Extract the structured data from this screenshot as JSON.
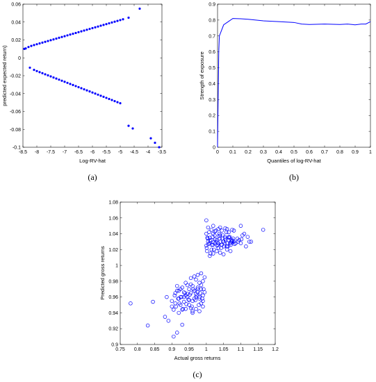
{
  "chart_data": [
    {
      "type": "scatter",
      "panel_label": "(a)",
      "title": "",
      "xlabel": "Log-RV-hat",
      "ylabel": "predicted expected return)",
      "xlim": [
        -8.5,
        -3.5
      ],
      "ylim": [
        -0.1,
        0.06
      ],
      "xticks": [
        "-8.5",
        "-8",
        "-7.5",
        "-7",
        "-6.5",
        "-6",
        "-5.5",
        "-5",
        "-4.5",
        "-4",
        "-3.5"
      ],
      "yticks": [
        "0.06",
        "0.04",
        "0.02",
        "0",
        "-0.02",
        "-0.04",
        "-0.06",
        "-0.08",
        "-0.1"
      ],
      "marker": "filled-dot",
      "color": "#0000ff",
      "series": [
        {
          "x": [
            -8.45,
            -8.4,
            -8.3,
            -8.2,
            -8.1,
            -8.0,
            -7.9,
            -7.8,
            -7.7,
            -7.6,
            -7.5,
            -7.4,
            -7.3,
            -7.2,
            -7.1,
            -7.0,
            -6.9,
            -6.8,
            -6.7,
            -6.6,
            -6.5,
            -6.4,
            -6.3,
            -6.2,
            -6.1,
            -6.0,
            -5.9,
            -5.8,
            -5.7,
            -5.6,
            -5.5,
            -5.4,
            -5.3,
            -5.2,
            -5.1,
            -5.0,
            -4.9,
            -4.7,
            -4.3
          ],
          "y": [
            0.01,
            0.0105,
            0.0121,
            0.0133,
            0.0143,
            0.0152,
            0.0161,
            0.017,
            0.0179,
            0.0188,
            0.0197,
            0.0206,
            0.0215,
            0.0224,
            0.0233,
            0.0242,
            0.0251,
            0.026,
            0.0269,
            0.0278,
            0.0287,
            0.0296,
            0.0305,
            0.0314,
            0.0323,
            0.0332,
            0.0341,
            0.035,
            0.0359,
            0.0368,
            0.0377,
            0.0386,
            0.0395,
            0.0404,
            0.0413,
            0.0422,
            0.0431,
            0.0449,
            0.055
          ]
        },
        {
          "x": [
            -8.25,
            -8.1,
            -8.0,
            -7.9,
            -7.8,
            -7.7,
            -7.6,
            -7.5,
            -7.4,
            -7.3,
            -7.2,
            -7.1,
            -7.0,
            -6.9,
            -6.8,
            -6.7,
            -6.6,
            -6.5,
            -6.4,
            -6.3,
            -6.2,
            -6.1,
            -6.0,
            -5.9,
            -5.8,
            -5.7,
            -5.6,
            -5.5,
            -5.4,
            -5.3,
            -5.2,
            -5.1,
            -5.0,
            -4.7,
            -4.55,
            -3.9,
            -3.75,
            -3.6
          ],
          "y": [
            -0.011,
            -0.0135,
            -0.0148,
            -0.016,
            -0.0172,
            -0.0184,
            -0.0196,
            -0.0208,
            -0.022,
            -0.0232,
            -0.0244,
            -0.0256,
            -0.0268,
            -0.028,
            -0.0292,
            -0.0304,
            -0.0316,
            -0.0328,
            -0.034,
            -0.0352,
            -0.0364,
            -0.0376,
            -0.0388,
            -0.04,
            -0.0412,
            -0.0424,
            -0.0436,
            -0.0448,
            -0.046,
            -0.0472,
            -0.0484,
            -0.0496,
            -0.0508,
            -0.076,
            -0.079,
            -0.09,
            -0.095,
            -0.1
          ]
        }
      ]
    },
    {
      "type": "line",
      "panel_label": "(b)",
      "title": "",
      "xlabel": "Quantiles of log-RV-hat",
      "ylabel": "Strength of exposure",
      "xlim": [
        0,
        1
      ],
      "ylim": [
        0,
        0.9
      ],
      "xticks": [
        "0",
        "0.1",
        "0.2",
        "0.3",
        "0.4",
        "0.5",
        "0.6",
        "0.7",
        "0.8",
        "0.9",
        "1"
      ],
      "yticks": [
        "0.9",
        "0.8",
        "0.7",
        "0.6",
        "0.5",
        "0.4",
        "0.3",
        "0.2",
        "0.1",
        "0"
      ],
      "color": "#0000ff",
      "series": [
        {
          "x": [
            0,
            0.004,
            0.008,
            0.012,
            0.02,
            0.04,
            0.07,
            0.1,
            0.15,
            0.2,
            0.3,
            0.4,
            0.5,
            0.55,
            0.6,
            0.7,
            0.8,
            0.85,
            0.9,
            0.94,
            0.97,
            1.0
          ],
          "y": [
            0.0,
            0.3,
            0.6,
            0.7,
            0.72,
            0.77,
            0.79,
            0.81,
            0.808,
            0.805,
            0.795,
            0.79,
            0.785,
            0.775,
            0.772,
            0.775,
            0.772,
            0.775,
            0.77,
            0.775,
            0.775,
            0.79
          ]
        }
      ]
    },
    {
      "type": "scatter",
      "panel_label": "(c)",
      "title": "",
      "xlabel": "Actual gross returns",
      "ylabel": "Predicted gross returns",
      "xlim": [
        0.75,
        1.2
      ],
      "ylim": [
        0.9,
        1.08
      ],
      "xticks": [
        "0.75",
        "0.8",
        "0.85",
        "0.9",
        "0.95",
        "1",
        "1.05",
        "1.1",
        "1.15",
        "1.2"
      ],
      "yticks": [
        "1.08",
        "1.06",
        "1.04",
        "1.02",
        "1",
        "0.98",
        "0.96",
        "0.94",
        "0.92",
        "0.9"
      ],
      "marker": "open-circle",
      "color": "#0000ff",
      "series": [
        {
          "x": [
            1.0,
            1.005,
            1.01,
            1.015,
            1.02,
            1.025,
            1.03,
            1.035,
            1.04,
            1.045,
            1.05,
            1.055,
            1.06,
            1.065,
            1.07,
            1.075,
            1.08,
            1.09,
            1.1,
            1.11,
            1.12,
            1.13,
            1.165,
            1.0,
            1.002,
            1.008,
            1.012,
            1.018,
            1.022,
            1.028,
            1.033,
            1.038,
            1.043,
            1.048,
            1.053,
            1.058,
            1.063,
            1.068,
            1.072,
            1.078,
            1.085,
            1.095,
            1.105,
            1.115,
            1.125,
            1.003,
            1.006,
            1.011,
            1.016,
            1.021,
            1.026,
            1.031,
            1.036,
            1.041,
            1.046,
            1.051,
            1.056,
            1.061,
            1.066,
            1.071,
            1.076,
            1.082,
            1.092,
            1.102,
            1.001,
            1.004,
            1.009,
            1.014,
            1.019,
            1.024,
            1.029,
            1.034,
            1.039,
            1.044,
            1.049,
            1.054,
            1.059,
            1.064,
            1.069,
            1.074,
            1.005,
            1.015,
            1.025,
            1.035,
            1.045,
            1.055,
            1.065,
            1.075,
            1.01,
            1.02,
            1.03,
            1.04,
            1.05,
            1.06,
            1.07,
            1.02,
            1.04,
            1.06,
            1.08,
            1.1,
            1.0
          ],
          "y": [
            1.025,
            1.03,
            1.035,
            1.02,
            1.04,
            1.028,
            1.032,
            1.022,
            1.038,
            1.026,
            1.03,
            1.034,
            1.024,
            1.036,
            1.028,
            1.032,
            1.03,
            1.034,
            1.028,
            1.04,
            1.036,
            1.03,
            1.045,
            1.04,
            1.018,
            1.042,
            1.015,
            1.036,
            1.02,
            1.044,
            1.026,
            1.04,
            1.022,
            1.038,
            1.028,
            1.042,
            1.024,
            1.036,
            1.03,
            1.034,
            1.028,
            1.032,
            1.038,
            1.024,
            1.03,
            1.035,
            1.027,
            1.031,
            1.026,
            1.029,
            1.033,
            1.025,
            1.037,
            1.03,
            1.034,
            1.024,
            1.032,
            1.028,
            1.035,
            1.026,
            1.031,
            1.027,
            1.03,
            1.033,
            1.022,
            1.034,
            1.028,
            1.032,
            1.026,
            1.038,
            1.03,
            1.028,
            1.034,
            1.026,
            1.03,
            1.036,
            1.024,
            1.032,
            1.028,
            1.03,
            1.048,
            1.045,
            1.043,
            1.046,
            1.044,
            1.047,
            1.042,
            1.045,
            1.012,
            1.015,
            1.018,
            1.016,
            1.014,
            1.02,
            1.018,
            1.05,
            1.048,
            1.046,
            1.044,
            1.05,
            1.057
          ]
        },
        {
          "x": [
            0.78,
            0.83,
            0.845,
            0.88,
            0.885,
            0.89,
            0.9,
            0.905,
            0.91,
            0.915,
            0.92,
            0.925,
            0.93,
            0.935,
            0.94,
            0.945,
            0.95,
            0.955,
            0.96,
            0.965,
            0.97,
            0.975,
            0.98,
            0.985,
            0.99,
            0.995,
            0.9,
            0.91,
            0.92,
            0.93,
            0.94,
            0.95,
            0.96,
            0.97,
            0.98,
            0.99,
            0.915,
            0.925,
            0.935,
            0.945,
            0.955,
            0.965,
            0.975,
            0.985,
            0.992,
            0.988,
            0.982,
            0.978,
            0.972,
            0.968,
            0.962,
            0.958,
            0.952,
            0.948,
            0.942,
            0.938,
            0.932,
            0.928,
            0.922,
            0.918,
            0.912,
            0.908,
            0.905,
            0.995,
            0.99,
            0.985,
            0.98,
            0.975,
            0.97,
            0.965,
            0.96,
            0.955,
            0.95,
            0.945,
            0.94,
            0.935,
            0.93,
            0.925,
            0.92,
            0.915,
            0.96,
            0.97,
            0.98,
            0.99,
            0.985,
            0.975,
            0.965,
            0.955
          ],
          "y": [
            0.952,
            0.924,
            0.954,
            0.935,
            0.96,
            0.93,
            0.955,
            0.91,
            0.965,
            0.915,
            0.94,
            0.97,
            0.925,
            0.96,
            0.945,
            0.975,
            0.95,
            0.965,
            0.955,
            0.968,
            0.96,
            0.972,
            0.958,
            0.97,
            0.962,
            0.966,
            0.948,
            0.952,
            0.958,
            0.944,
            0.962,
            0.956,
            0.942,
            0.964,
            0.96,
            0.955,
            0.968,
            0.95,
            0.954,
            0.96,
            0.946,
            0.958,
            0.966,
            0.952,
            0.97,
            0.958,
            0.965,
            0.95,
            0.962,
            0.956,
            0.97,
            0.948,
            0.963,
            0.957,
            0.951,
            0.965,
            0.945,
            0.96,
            0.952,
            0.958,
            0.948,
            0.962,
            0.944,
            0.985,
            0.98,
            0.975,
            0.978,
            0.97,
            0.982,
            0.968,
            0.974,
            0.976,
            0.97,
            0.964,
            0.978,
            0.966,
            0.972,
            0.96,
            0.968,
            0.974,
            0.94,
            0.945,
            0.942,
            0.948,
            0.99,
            0.988,
            0.986,
            0.984
          ]
        }
      ]
    }
  ]
}
